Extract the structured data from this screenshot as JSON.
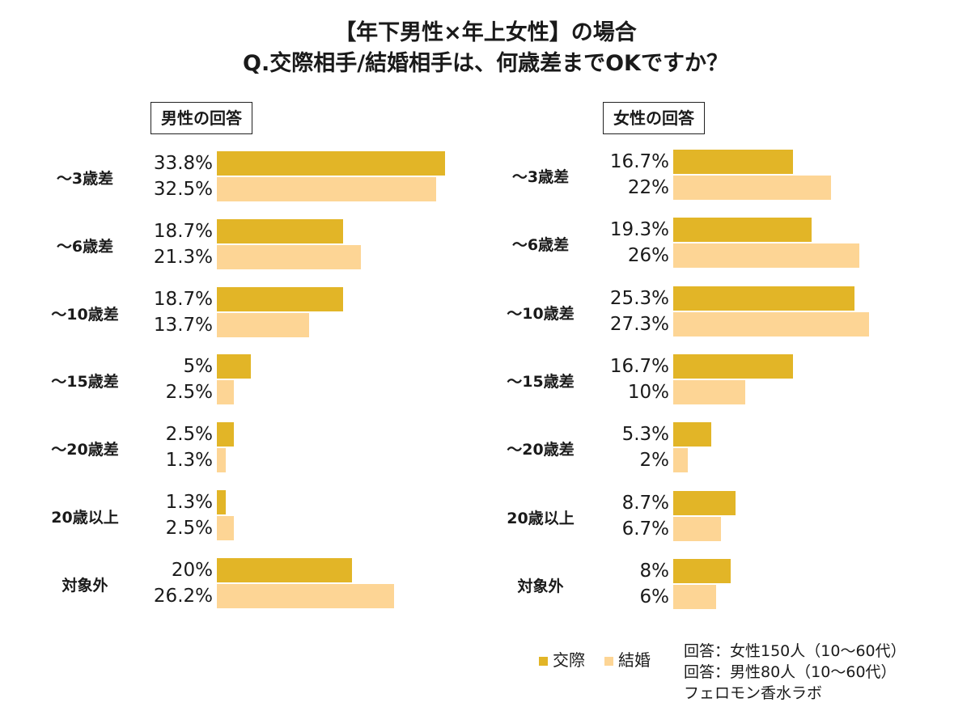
{
  "chart_data": [
    {
      "type": "bar",
      "orientation": "horizontal",
      "title": "男性の回答",
      "categories": [
        "～3歳差",
        "～6歳差",
        "～10歳差",
        "～15歳差",
        "～20歳差",
        "20歳以上",
        "対象外"
      ],
      "series": [
        {
          "name": "交際",
          "values": [
            33.8,
            18.7,
            18.7,
            5,
            2.5,
            1.3,
            20
          ],
          "labels": [
            "33.8%",
            "18.7%",
            "18.7%",
            "5%",
            "2.5%",
            "1.3%",
            "20%"
          ]
        },
        {
          "name": "結婚",
          "values": [
            32.5,
            21.3,
            13.7,
            2.5,
            1.3,
            2.5,
            26.2
          ],
          "labels": [
            "32.5%",
            "21.3%",
            "13.7%",
            "2.5%",
            "1.3%",
            "2.5%",
            "26.2%"
          ]
        }
      ]
    },
    {
      "type": "bar",
      "orientation": "horizontal",
      "title": "女性の回答",
      "categories": [
        "～3歳差",
        "～6歳差",
        "～10歳差",
        "～15歳差",
        "～20歳差",
        "20歳以上",
        "対象外"
      ],
      "series": [
        {
          "name": "交際",
          "values": [
            16.7,
            19.3,
            25.3,
            16.7,
            5.3,
            8.7,
            8
          ],
          "labels": [
            "16.7%",
            "19.3%",
            "25.3%",
            "16.7%",
            "5.3%",
            "8.7%",
            "8%"
          ]
        },
        {
          "name": "結婚",
          "values": [
            22,
            26,
            27.3,
            10,
            2,
            6.7,
            6
          ],
          "labels": [
            "22%",
            "26%",
            "27.3%",
            "10%",
            "2%",
            "6.7%",
            "6%"
          ]
        }
      ]
    }
  ],
  "title_line1": "【年下男性×年上女性】の場合",
  "title_line2": "Q.交際相手/結婚相手は、何歳差までOKですか？",
  "legend": [
    {
      "label": "交際",
      "color": "#E2B527"
    },
    {
      "label": "結婚",
      "color": "#FDD595"
    }
  ],
  "footer": [
    "回答：女性150人（10～60代）",
    "回答：男性80人（10～60代）",
    "フェロモン香水ラボ"
  ]
}
